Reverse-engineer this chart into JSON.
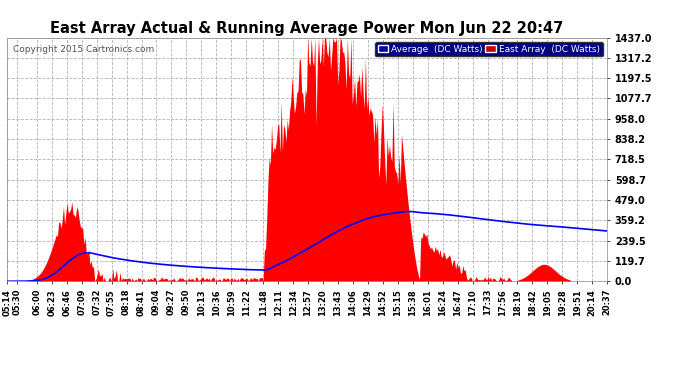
{
  "title": "East Array Actual & Running Average Power Mon Jun 22 20:47",
  "copyright": "Copyright 2015 Cartronics.com",
  "legend_avg": "Average  (DC Watts)",
  "legend_east": "East Array  (DC Watts)",
  "yticks": [
    0.0,
    119.7,
    239.5,
    359.2,
    479.0,
    598.7,
    718.5,
    838.2,
    958.0,
    1077.7,
    1197.5,
    1317.2,
    1437.0
  ],
  "ylim": [
    0,
    1437.0
  ],
  "xtick_labels": [
    "05:14",
    "05:30",
    "06:00",
    "06:23",
    "06:46",
    "07:09",
    "07:32",
    "07:55",
    "08:18",
    "08:41",
    "09:04",
    "09:27",
    "09:50",
    "10:13",
    "10:36",
    "10:59",
    "11:22",
    "11:48",
    "12:11",
    "12:34",
    "12:57",
    "13:20",
    "13:43",
    "14:06",
    "14:29",
    "14:52",
    "15:15",
    "15:38",
    "16:01",
    "16:24",
    "16:47",
    "17:10",
    "17:33",
    "17:56",
    "18:19",
    "18:42",
    "19:05",
    "19:28",
    "19:51",
    "20:14",
    "20:37"
  ],
  "bg_color": "#ffffff",
  "plot_bg_color": "#ffffff",
  "grid_color": "#aaaaaa",
  "title_color": "#000000",
  "tick_color": "#000000",
  "copyright_color": "#555555",
  "red_color": "#ff0000",
  "avg_line_color": "#0000ff",
  "legend_avg_bg": "#0000aa",
  "legend_east_bg": "#cc0000"
}
